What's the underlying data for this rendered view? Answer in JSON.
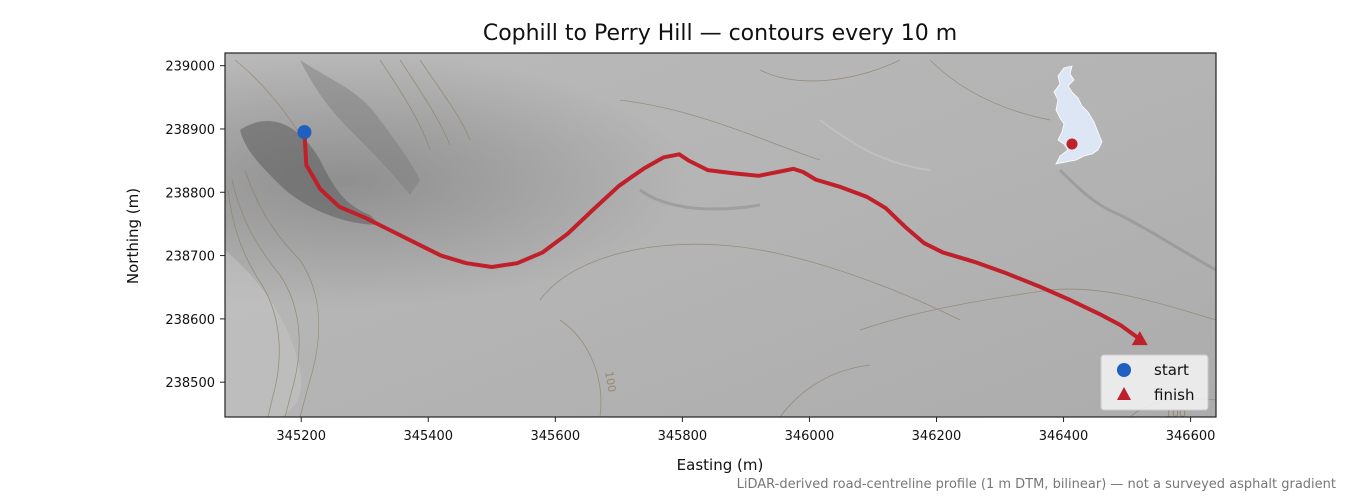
{
  "title": "Cophill to Perry Hill — contours every 10 m",
  "xlabel": "Easting (m)",
  "ylabel": "Northing (m)",
  "caption": "LiDAR-derived road-centreline profile (1 m DTM, bilinear) — not a surveyed asphalt gradient",
  "xlim": [
    345080,
    346640
  ],
  "ylim": [
    238445,
    239020
  ],
  "x_ticks": [
    345200,
    345400,
    345600,
    345800,
    346000,
    346200,
    346400,
    346600
  ],
  "y_ticks": [
    238500,
    238600,
    238700,
    238800,
    238900,
    239000
  ],
  "x_tick_labels": [
    "345200",
    "345400",
    "345600",
    "345800",
    "346000",
    "346200",
    "346400",
    "346600"
  ],
  "y_tick_labels": [
    "238500",
    "238600",
    "238700",
    "238800",
    "238900",
    "239000"
  ],
  "contour_labels": [
    "100",
    "100"
  ],
  "legend": {
    "start": "start",
    "finish": "finish",
    "placement": "lower-right"
  },
  "colors": {
    "route": "#c0202a",
    "start": "#1f5fbf",
    "finish": "#c0202a",
    "uk_fill": "#dde6f4",
    "inset_marker": "#c0202a"
  },
  "chart_data": {
    "type": "line",
    "series": [
      {
        "x": [
          345205,
          345208,
          345230,
          345260,
          345300,
          345340,
          345380,
          345420,
          345460,
          345500,
          345540,
          345580,
          345620,
          345660,
          345700,
          345740,
          345770,
          345795,
          345810,
          345840,
          345880,
          345920,
          345950,
          345975,
          345990,
          346010,
          346050,
          346090,
          346120,
          346150,
          346180,
          346210,
          346260,
          346310,
          346360,
          346410,
          346460,
          346490,
          346520
        ],
        "y": [
          238895,
          238843,
          238805,
          238777,
          238760,
          238740,
          238720,
          238700,
          238688,
          238682,
          238688,
          238705,
          238735,
          238773,
          238810,
          238838,
          238855,
          238860,
          238850,
          238835,
          238830,
          238826,
          238832,
          238837,
          238832,
          238820,
          238808,
          238793,
          238775,
          238746,
          238720,
          238705,
          238690,
          238672,
          238652,
          238630,
          238606,
          238590,
          238568
        ]
      }
    ],
    "points": [
      {
        "x": 345205,
        "y": 238895
      },
      {
        "x": 346520,
        "y": 238568
      }
    ],
    "grid": false
  }
}
